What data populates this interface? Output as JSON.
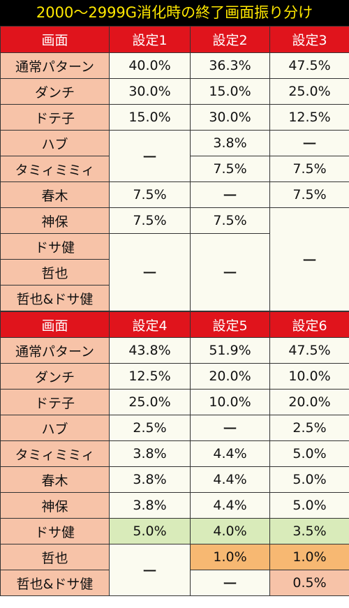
{
  "title": "2000～2999G消化時の終了画面振り分け",
  "table1": {
    "header": [
      "画面",
      "設定1",
      "設定2",
      "設定3"
    ],
    "labels": [
      "通常パターン",
      "ダンチ",
      "ドテ子",
      "ハブ",
      "タミィミミィ",
      "春木",
      "神保",
      "ドサ健",
      "哲也",
      "哲也&ドサ健"
    ],
    "cells": {
      "r0": [
        "40.0%",
        "36.3%",
        "47.5%"
      ],
      "r1": [
        "30.0%",
        "15.0%",
        "25.0%"
      ],
      "r2": [
        "15.0%",
        "30.0%",
        "12.5%"
      ],
      "r3_c1": "ー",
      "r3_c2": "3.8%",
      "r3_c3": "ー",
      "r4_c2": "7.5%",
      "r4_c3": "7.5%",
      "r5": [
        "7.5%",
        "ー",
        "7.5%"
      ],
      "r6_c1": "7.5%",
      "r6_c2": "7.5%",
      "r6_c3": "ー",
      "r7_c1": "ー",
      "r7_c2": "ー"
    }
  },
  "table2": {
    "header": [
      "画面",
      "設定4",
      "設定5",
      "設定6"
    ],
    "labels": [
      "通常パターン",
      "ダンチ",
      "ドテ子",
      "ハブ",
      "タミィミミィ",
      "春木",
      "神保",
      "ドサ健",
      "哲也",
      "哲也&ドサ健"
    ],
    "cells": {
      "r0": [
        "43.8%",
        "51.9%",
        "47.5%"
      ],
      "r1": [
        "12.5%",
        "20.0%",
        "10.0%"
      ],
      "r2": [
        "25.0%",
        "10.0%",
        "20.0%"
      ],
      "r3": [
        "2.5%",
        "ー",
        "2.5%"
      ],
      "r4": [
        "3.8%",
        "4.4%",
        "5.0%"
      ],
      "r5": [
        "3.8%",
        "4.4%",
        "5.0%"
      ],
      "r6": [
        "3.8%",
        "4.4%",
        "5.0%"
      ],
      "r7": [
        "5.0%",
        "4.0%",
        "3.5%"
      ],
      "r8_c1": "ー",
      "r8_c2": "1.0%",
      "r8_c3": "1.0%",
      "r9_c2": "ー",
      "r9_c3": "0.5%"
    }
  },
  "colors": {
    "title_bg": "#000000",
    "title_text": "#ffe800",
    "header_bg": "#e0141c",
    "label_bg": "#f7c3a8",
    "cell_bg": "#fbfbf0",
    "highlight_green": "#d9ebba",
    "highlight_orange": "#f7b872"
  }
}
